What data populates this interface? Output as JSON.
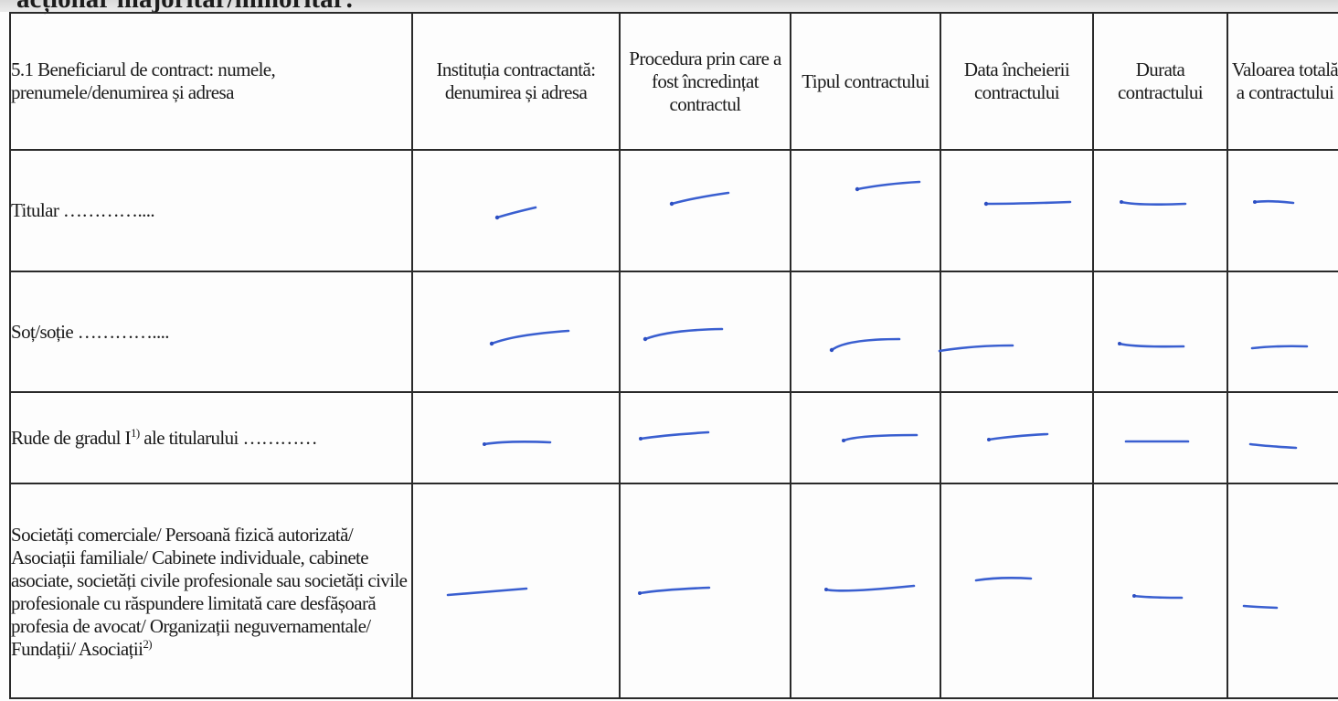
{
  "header_fragment": "acționar majoritar/minoritar:",
  "table": {
    "columns": [
      "5.1 Beneficiarul de contract: numele, prenumele/denumirea și adresa",
      "Instituția contractantă: denumirea și adresa",
      "Procedura prin care a fost încredințat contractul",
      "Tipul contractului",
      "Data încheierii contractului",
      "Durata contractului",
      "Valoarea totală a contractului"
    ],
    "rows": [
      {
        "label": "Titular …………...."
      },
      {
        "label": "Soț/soție …………...."
      },
      {
        "label": "Rude de gradul I",
        "sup": "1)",
        "label_suffix": " ale titularului …………"
      },
      {
        "label": "Societăți comerciale/ Persoană fizică autorizată/ Asociații familiale/ Cabinete individuale, cabinete asociate, societăți civile profesionale sau societăți civile profesionale cu răspundere limitată care desfășoară profesia de avocat/ Organizații neguvernamentale/ Fundații/ Asociații",
        "sup": "2)"
      }
    ],
    "cell_value": "—"
  }
}
